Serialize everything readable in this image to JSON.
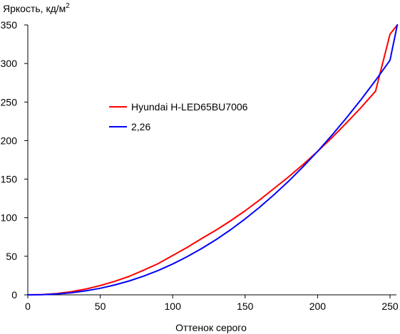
{
  "chart_data": {
    "type": "line",
    "ylabel": "Яркость, кд/м",
    "ylabel_superscript": "2",
    "xlabel": "Оттенок серого",
    "xlim": [
      0,
      255
    ],
    "ylim": [
      0,
      350
    ],
    "xticks": [
      0,
      50,
      100,
      150,
      200,
      250
    ],
    "yticks": [
      0,
      50,
      100,
      150,
      200,
      250,
      300,
      350
    ],
    "grid": false,
    "legend_position": "center-left",
    "series": [
      {
        "name": "Hyundai H-LED65BU7006",
        "color": "#ff0000",
        "x": [
          0,
          10,
          20,
          30,
          40,
          50,
          60,
          70,
          80,
          90,
          100,
          110,
          120,
          130,
          140,
          150,
          160,
          170,
          180,
          190,
          200,
          210,
          220,
          230,
          240,
          250,
          255
        ],
        "y": [
          0,
          0.4,
          1.7,
          4.1,
          7.5,
          12,
          17.5,
          24,
          32,
          40.5,
          51,
          61.5,
          73,
          84,
          96,
          109,
          123,
          138,
          153,
          169,
          186,
          204,
          223,
          243,
          264,
          338,
          350
        ]
      },
      {
        "name": "2,26",
        "color": "#0000ff",
        "x": [
          0,
          10,
          20,
          30,
          40,
          50,
          60,
          70,
          80,
          90,
          100,
          110,
          120,
          130,
          140,
          150,
          160,
          170,
          180,
          190,
          200,
          210,
          220,
          230,
          240,
          250,
          255
        ],
        "y": [
          0,
          0.2,
          1.1,
          2.7,
          5.2,
          8.5,
          12.8,
          18,
          24.3,
          31.6,
          40,
          49.5,
          60,
          71.7,
          84.5,
          98.4,
          113.6,
          129.9,
          147.4,
          166.1,
          186,
          207.2,
          229.6,
          253.2,
          278.1,
          304.2,
          350
        ]
      }
    ]
  }
}
